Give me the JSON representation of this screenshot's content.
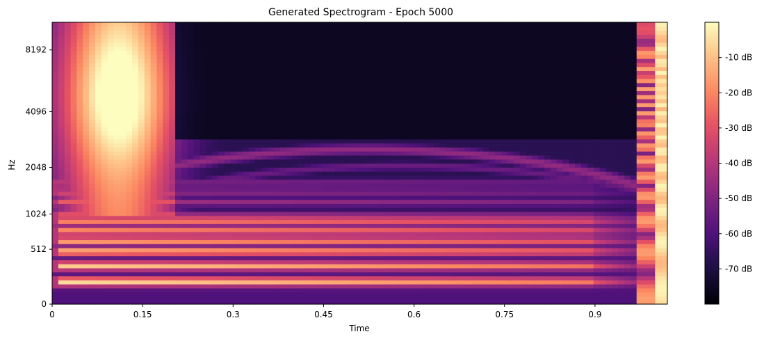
{
  "chart_data": {
    "type": "heatmap",
    "title": "Generated Spectrogram - Epoch 5000",
    "xlabel": "Time",
    "ylabel": "Hz",
    "x_range": [
      0,
      1.02
    ],
    "x_ticks": [
      0,
      0.15,
      0.3,
      0.45,
      0.6,
      0.75,
      0.9
    ],
    "x_tick_labels": [
      "0",
      "0.15",
      "0.3",
      "0.45",
      "0.6",
      "0.75",
      "0.9"
    ],
    "y_scale": "mel",
    "y_ticks": [
      0,
      512,
      1024,
      2048,
      4096,
      8192
    ],
    "y_tick_labels": [
      "0",
      "512",
      "1024",
      "2048",
      "4096",
      "8192"
    ],
    "colorbar": {
      "colormap": "magma",
      "range_db": [
        -80,
        0
      ],
      "ticks": [
        -10,
        -20,
        -30,
        -40,
        -50,
        -60,
        -70
      ],
      "tick_labels": [
        "-10 dB",
        "-20 dB",
        "-30 dB",
        "-40 dB",
        "-50 dB",
        "-60 dB",
        "-70 dB"
      ]
    },
    "grid": false,
    "harmonic_bands_hz": [
      180,
      330,
      490,
      620,
      760,
      900,
      1000,
      1250,
      1450,
      1650
    ],
    "features": {
      "strong_low_harmonics": "0 to ~0.95 s, below ~1000 Hz",
      "bright_formant_region": "0.05 to 0.2 s, 2000–9000 Hz",
      "high_band_silence": "0.2 to 0.95 s above ~3000 Hz",
      "rising_falling_arcs": "0.3 to 0.9 s, ~1500–3000 Hz",
      "loud_tail_column": "0.99 to 1.02 s, all frequencies"
    }
  }
}
